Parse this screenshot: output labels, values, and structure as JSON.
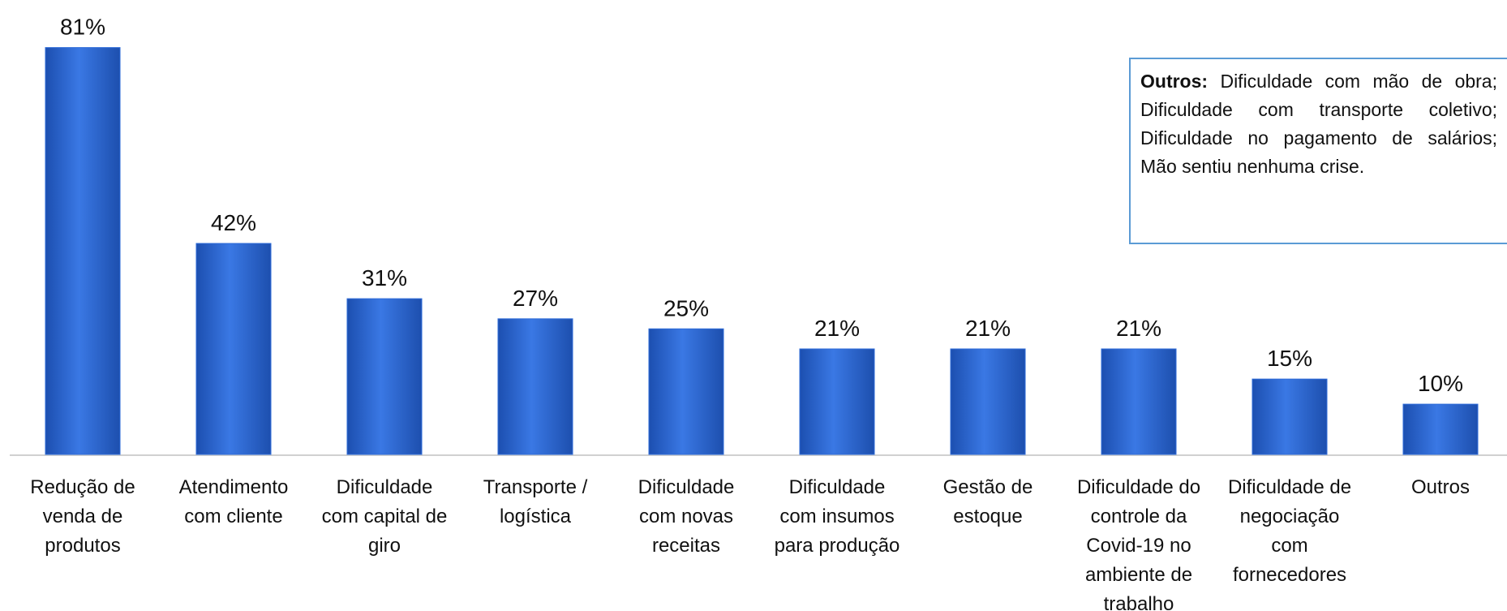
{
  "chart_data": {
    "type": "bar",
    "categories": [
      "Redução de\nvenda de\nprodutos",
      "Atendimento\ncom cliente",
      "Dificuldade\ncom capital de\ngiro",
      "Transporte /\nlogística",
      "Dificuldade\ncom novas\nreceitas",
      "Dificuldade\ncom insumos\npara produção",
      "Gestão de\nestoque",
      "Dificuldade do\ncontrole da\nCovid-19 no\nambiente de\ntrabalho",
      "Dificuldade de\nnegociação\ncom\nfornecedores",
      "Outros"
    ],
    "values": [
      81,
      42,
      31,
      27,
      25,
      21,
      21,
      21,
      15,
      10
    ],
    "value_labels": [
      "81%",
      "42%",
      "31%",
      "27%",
      "25%",
      "21%",
      "21%",
      "21%",
      "15%",
      "10%"
    ],
    "color": "#2e6bd8",
    "annotation": {
      "label": "Outros:",
      "text": "Dificuldade com mão de obra; Dificuldade com transporte coletivo; Dificuldade no pagamento de salários; Mão sentiu nenhuma crise."
    }
  }
}
